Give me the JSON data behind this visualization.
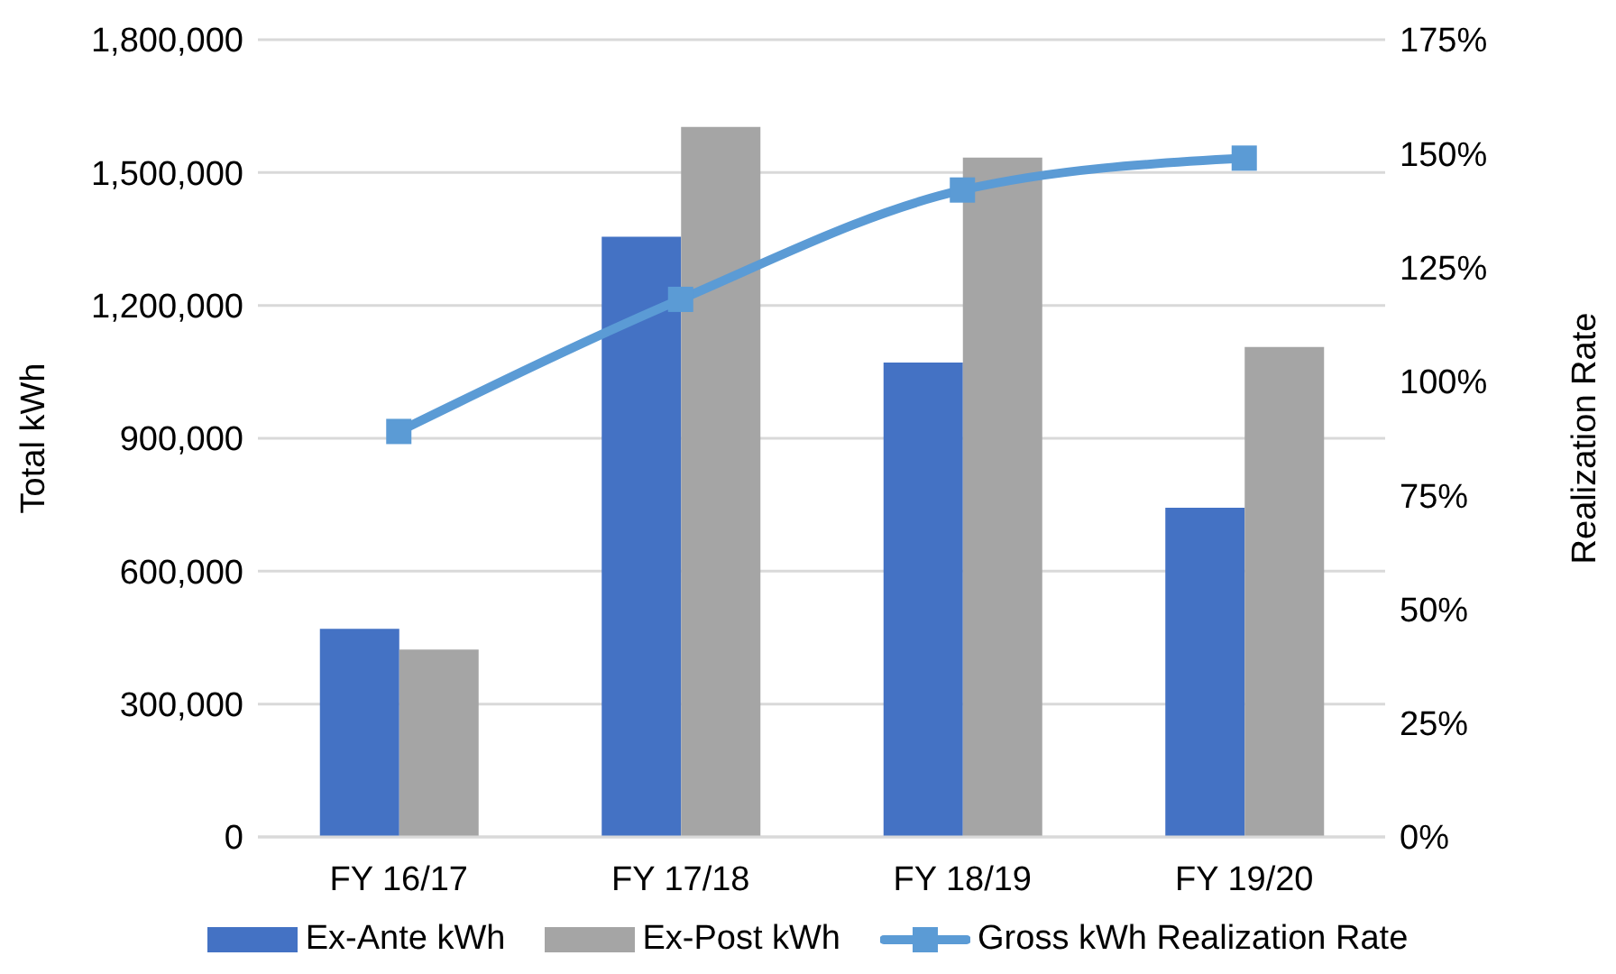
{
  "chart_data": {
    "type": "bar",
    "categories": [
      "FY 16/17",
      "FY 17/18",
      "FY 18/19",
      "FY 19/20"
    ],
    "ylabel": "Total kWh",
    "y2label": "Realization Rate",
    "series": [
      {
        "name": "Ex-Ante kWh",
        "color": "#4472c4",
        "values": [
          470000,
          1355000,
          1071000,
          743000
        ]
      },
      {
        "name": "Ex-Post kWh",
        "color": "#a5a5a5",
        "values": [
          423000,
          1603000,
          1534000,
          1106000
        ]
      },
      {
        "name": "Gross kWh Realization Rate",
        "type": "line",
        "axis": "y2",
        "color": "#5b9bd5",
        "values": [
          89,
          118,
          142,
          149
        ]
      }
    ],
    "ylim": [
      0,
      1800000
    ],
    "yticks": [
      0,
      {
        "value": 300000,
        "label": "300,000"
      },
      {
        "value": 600000,
        "label": "600,000"
      },
      {
        "value": 900000,
        "label": "900,000"
      },
      {
        "value": 1200000,
        "label": "1,200,000"
      },
      {
        "value": 1500000,
        "label": "1,500,000"
      },
      {
        "value": 1800000,
        "label": "1,800,000"
      }
    ],
    "y2lim": [
      0,
      175
    ],
    "y2ticks": [
      {
        "value": 0,
        "label": "0%"
      },
      {
        "value": 25,
        "label": "25%"
      },
      {
        "value": 50,
        "label": "50%"
      },
      {
        "value": 75,
        "label": "75%"
      },
      {
        "value": 100,
        "label": "100%"
      },
      {
        "value": 125,
        "label": "125%"
      },
      {
        "value": 150,
        "label": "150%"
      },
      {
        "value": 175,
        "label": "175%"
      }
    ],
    "grid": "y",
    "legend": "bottom",
    "marker": "square"
  }
}
